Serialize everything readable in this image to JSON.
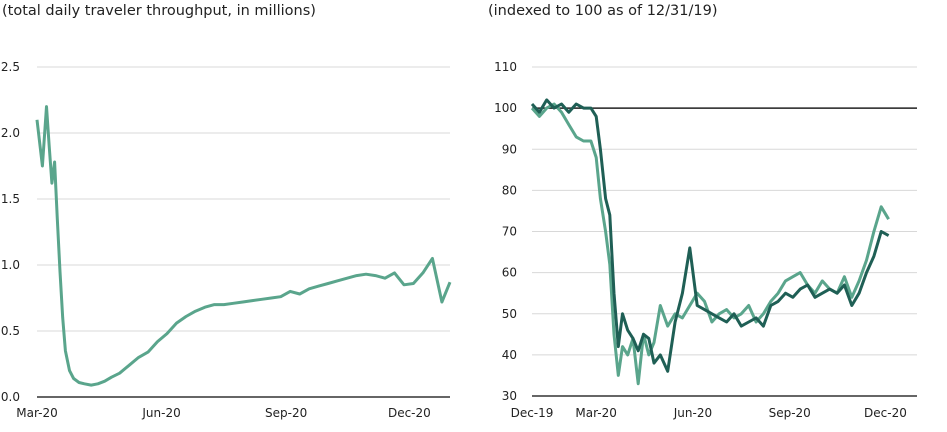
{
  "colors": {
    "series_light": "#5aa58c",
    "series_dark": "#1f5f55",
    "grid": "#d8d8d8",
    "text": "#222222"
  },
  "chart_data": [
    {
      "type": "line",
      "subtitle": "(total daily traveler throughput, in millions)",
      "ylim": [
        0,
        2.5
      ],
      "yticks": [
        "0.0",
        "0.5",
        "1.0",
        "1.5",
        "2.0",
        "2.5"
      ],
      "xtick_labels": [
        "Mar-20",
        "Jun-20",
        "Sep-20",
        "Dec-20"
      ],
      "grid": true,
      "series": [
        {
          "color": "light",
          "x": [
            "Mar-01",
            "Mar-05",
            "Mar-08",
            "Mar-10",
            "Mar-12",
            "Mar-14",
            "Mar-16",
            "Mar-18",
            "Mar-20",
            "Mar-22",
            "Mar-25",
            "Mar-28",
            "Apr-01",
            "Apr-05",
            "Apr-10",
            "Apr-15",
            "Apr-20",
            "Apr-25",
            "May-01",
            "May-08",
            "May-15",
            "May-22",
            "May-29",
            "Jun-05",
            "Jun-12",
            "Jun-19",
            "Jun-26",
            "Jul-03",
            "Jul-10",
            "Jul-17",
            "Jul-24",
            "Jul-31",
            "Aug-07",
            "Aug-14",
            "Aug-21",
            "Aug-28",
            "Sep-04",
            "Sep-11",
            "Sep-18",
            "Sep-25",
            "Oct-02",
            "Oct-09",
            "Oct-16",
            "Oct-23",
            "Oct-30",
            "Nov-06",
            "Nov-13",
            "Nov-20",
            "Nov-27",
            "Dec-04",
            "Dec-11",
            "Dec-18",
            "Dec-25",
            "Dec-31"
          ],
          "y": [
            2.1,
            1.75,
            2.2,
            1.9,
            1.62,
            1.78,
            1.35,
            0.95,
            0.6,
            0.35,
            0.2,
            0.14,
            0.11,
            0.1,
            0.09,
            0.1,
            0.12,
            0.15,
            0.18,
            0.24,
            0.3,
            0.34,
            0.42,
            0.48,
            0.56,
            0.61,
            0.65,
            0.68,
            0.7,
            0.7,
            0.71,
            0.72,
            0.73,
            0.74,
            0.75,
            0.76,
            0.8,
            0.78,
            0.82,
            0.84,
            0.86,
            0.88,
            0.9,
            0.92,
            0.93,
            0.92,
            0.9,
            0.94,
            0.85,
            0.86,
            0.94,
            1.05,
            0.72,
            0.87
          ]
        }
      ]
    },
    {
      "type": "line",
      "subtitle": "(indexed to 100 as of 12/31/19)",
      "ylim": [
        30,
        110
      ],
      "yticks": [
        "30",
        "40",
        "50",
        "60",
        "70",
        "80",
        "90",
        "100",
        "110"
      ],
      "xtick_labels": [
        "Dec-19",
        "Mar-20",
        "Jun-20",
        "Sep-20",
        "Dec-20"
      ],
      "reference_line": 100,
      "grid": true,
      "series": [
        {
          "color": "light",
          "x": [
            "2019-12-31",
            "2020-01-07",
            "2020-01-14",
            "2020-01-21",
            "2020-01-28",
            "2020-02-04",
            "2020-02-11",
            "2020-02-18",
            "2020-02-25",
            "2020-03-01",
            "2020-03-05",
            "2020-03-10",
            "2020-03-14",
            "2020-03-18",
            "2020-03-22",
            "2020-03-26",
            "2020-03-31",
            "2020-04-05",
            "2020-04-10",
            "2020-04-15",
            "2020-04-20",
            "2020-04-25",
            "2020-05-01",
            "2020-05-08",
            "2020-05-15",
            "2020-05-22",
            "2020-05-29",
            "2020-06-05",
            "2020-06-12",
            "2020-06-19",
            "2020-06-26",
            "2020-07-03",
            "2020-07-10",
            "2020-07-17",
            "2020-07-24",
            "2020-07-31",
            "2020-08-07",
            "2020-08-14",
            "2020-08-21",
            "2020-08-28",
            "2020-09-04",
            "2020-09-11",
            "2020-09-18",
            "2020-09-25",
            "2020-10-02",
            "2020-10-09",
            "2020-10-16",
            "2020-10-23",
            "2020-10-30",
            "2020-11-06",
            "2020-11-13",
            "2020-11-20",
            "2020-11-27",
            "2020-12-04"
          ],
          "y": [
            100,
            98,
            100,
            101,
            99,
            96,
            93,
            92,
            92,
            88,
            78,
            70,
            62,
            45,
            35,
            42,
            40,
            44,
            33,
            45,
            40,
            43,
            52,
            47,
            50,
            49,
            52,
            55,
            53,
            48,
            50,
            51,
            49,
            50,
            52,
            48,
            50,
            53,
            55,
            58,
            59,
            60,
            57,
            55,
            58,
            56,
            55,
            59,
            54,
            58,
            63,
            70,
            76,
            73
          ]
        },
        {
          "color": "dark",
          "x": [
            "2019-12-31",
            "2020-01-07",
            "2020-01-14",
            "2020-01-21",
            "2020-01-28",
            "2020-02-04",
            "2020-02-11",
            "2020-02-18",
            "2020-02-25",
            "2020-03-01",
            "2020-03-05",
            "2020-03-10",
            "2020-03-14",
            "2020-03-18",
            "2020-03-22",
            "2020-03-26",
            "2020-03-31",
            "2020-04-05",
            "2020-04-10",
            "2020-04-15",
            "2020-04-20",
            "2020-04-25",
            "2020-05-01",
            "2020-05-08",
            "2020-05-15",
            "2020-05-22",
            "2020-05-29",
            "2020-06-05",
            "2020-06-12",
            "2020-06-19",
            "2020-06-26",
            "2020-07-03",
            "2020-07-10",
            "2020-07-17",
            "2020-07-24",
            "2020-07-31",
            "2020-08-07",
            "2020-08-14",
            "2020-08-21",
            "2020-08-28",
            "2020-09-04",
            "2020-09-11",
            "2020-09-18",
            "2020-09-25",
            "2020-10-02",
            "2020-10-09",
            "2020-10-16",
            "2020-10-23",
            "2020-10-30",
            "2020-11-06",
            "2020-11-13",
            "2020-11-20",
            "2020-11-27",
            "2020-12-04"
          ],
          "y": [
            101,
            99,
            102,
            100,
            101,
            99,
            101,
            100,
            100,
            98,
            90,
            78,
            74,
            55,
            42,
            50,
            46,
            44,
            41,
            45,
            44,
            38,
            40,
            36,
            48,
            55,
            66,
            52,
            51,
            50,
            49,
            48,
            50,
            47,
            48,
            49,
            47,
            52,
            53,
            55,
            54,
            56,
            57,
            54,
            55,
            56,
            55,
            57,
            52,
            55,
            60,
            64,
            70,
            69
          ]
        }
      ]
    }
  ]
}
